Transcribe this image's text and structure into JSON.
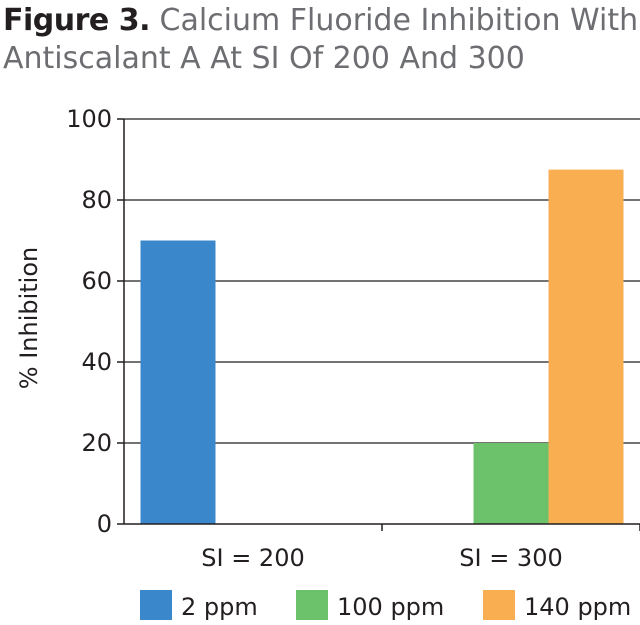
{
  "figure": {
    "label": "Figure 3.",
    "title": "Calcium Fluoride Inhibition With Antiscalant A At SI Of 200 And 300"
  },
  "chart_data": {
    "type": "bar",
    "categories": [
      "SI = 200",
      "SI = 300"
    ],
    "series": [
      {
        "name": "2 ppm",
        "values": [
          70,
          null
        ],
        "color": "#3b87cc"
      },
      {
        "name": "100 ppm",
        "values": [
          null,
          20
        ],
        "color": "#6cc16b"
      },
      {
        "name": "140 ppm",
        "values": [
          null,
          87.5
        ],
        "color": "#f9ae52"
      }
    ],
    "ylabel": "% Inhibition",
    "xlabel": "",
    "ylim": [
      0,
      100
    ],
    "yticks": [
      0,
      20,
      40,
      60,
      80,
      100
    ],
    "grid": true,
    "legend": "bottom"
  }
}
